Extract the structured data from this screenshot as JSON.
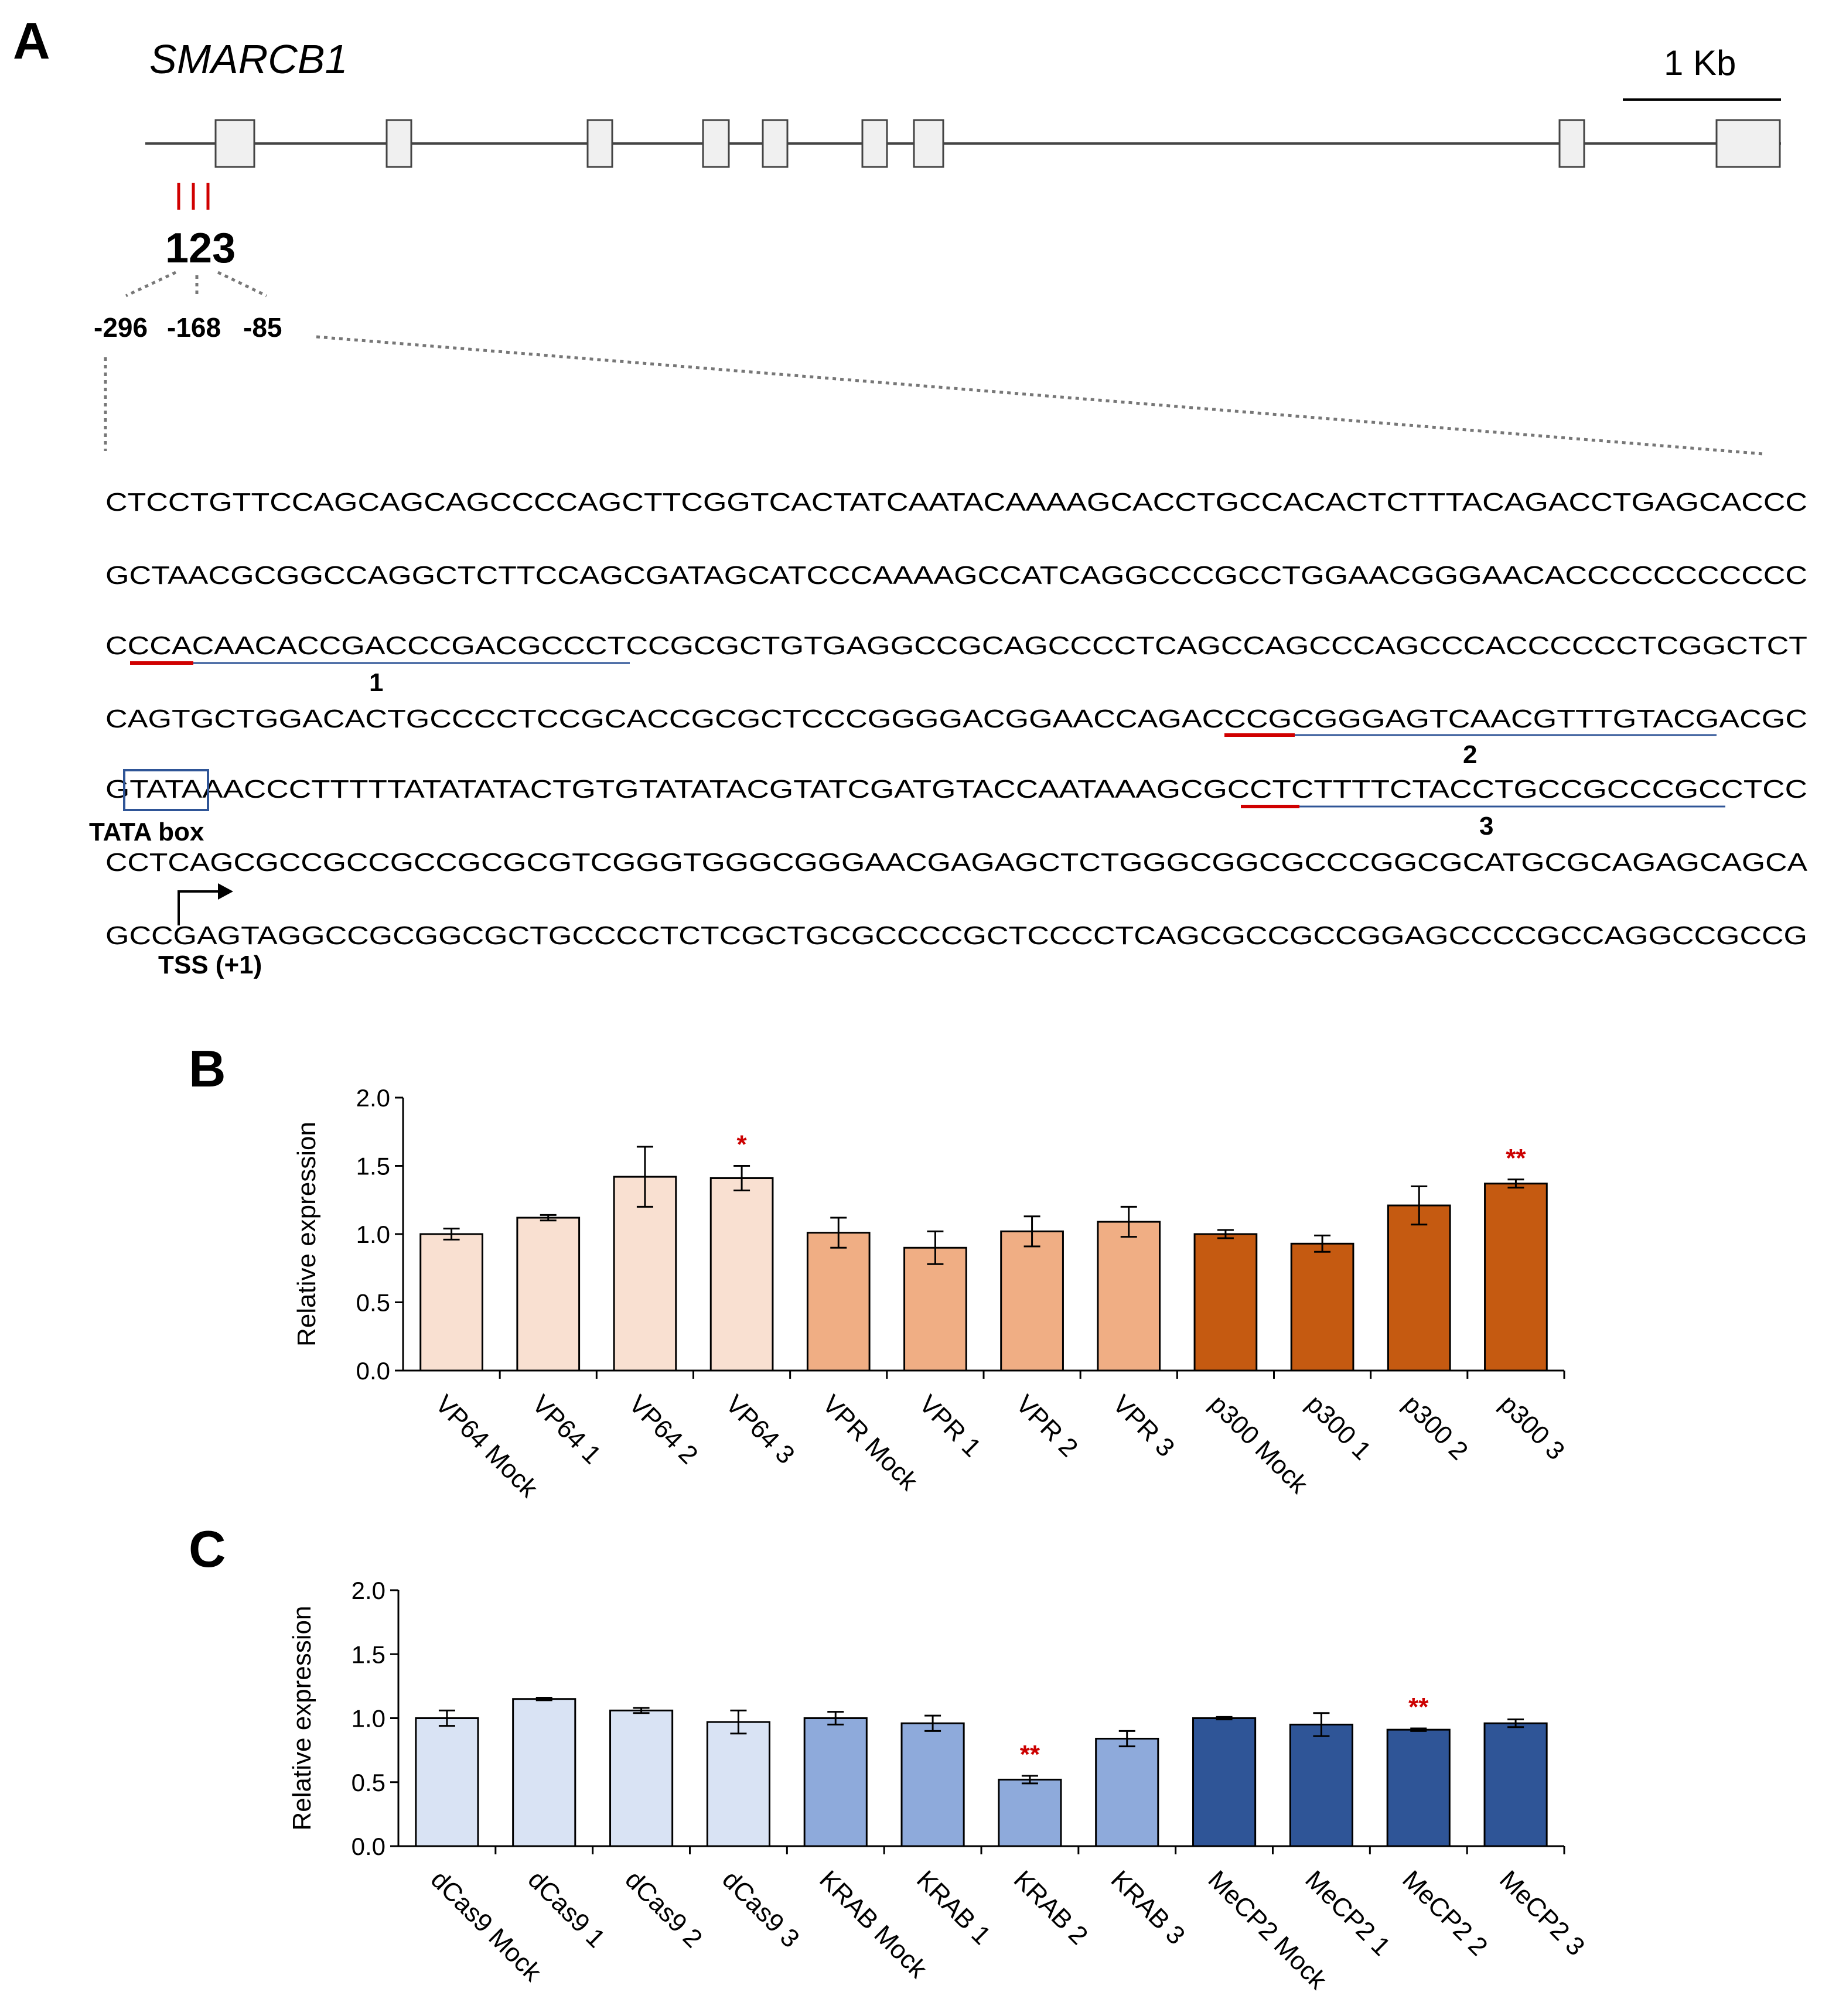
{
  "panel_labels": {
    "a": "A",
    "b": "B",
    "c": "C"
  },
  "gene_name": "SMARCB1",
  "scale_label": "1 Kb",
  "guide_marks": "123",
  "guide_positions": [
    "-296",
    "-168",
    "-85"
  ],
  "sequence_lines": [
    "CTCCTGTTCCAGCAGCAGCCCCAGCTTCGGTCACTATCAATACAAAAGCACCTGCCACACTCTTTACAGACCTGAGCACCC",
    "GCTAACGCGGCCAGGCTCTTCCAGCGATAGCATCCCAAAAGCCATCAGGCCCGCCTGGAACGGGAACACCCCCCCCCCC",
    "CCCACAACACCGACCCGACGCCCTCCGCGCTGTGAGGCCGCAGCCCCTCAGCCAGCCCAGCCCACCCCCCTCGGCTCT",
    "CAGTGCTGGACACTGCCCCTCCGCACCGCGCTCCCGGGGACGGAACCAGACCCGCGGGAGTCAACGTTTGTACGACGC",
    "GTATAAACCCTTTTTATATATACTGTGTATATACGTATCGATGTACCAATAAAGCGCCTCTTTTCTACCTGCCGCCCGCCTCC",
    "CCTCAGCGCCGCCGCCGCGCGTCGGGTGGGCGGGAACGAGAGCTCTGGGCGGCGCCCGGCGCATGCGCAGAGCAGCA",
    "GCCGAGTAGGCCGCGGCGCTGCCCCTCTCGCTGCGCCCCGCTCCCCTCAGCGCCGCCGGAGCCCCGCCAGGCCGCCG"
  ],
  "guide_labels": [
    "1",
    "2",
    "3"
  ],
  "tata_label": "TATA box",
  "tss_label": "TSS (+1)",
  "colors": {
    "vp64": "#f9e0d1",
    "vpr": "#f0ae84",
    "p300": "#c55a11",
    "dcas9": "#d9e3f4",
    "krab": "#8eaadb",
    "mecp2": "#2f5597",
    "pam": "#d00000",
    "protospacer": "#2f5597",
    "significance": "#cc0000"
  },
  "chart_data": [
    {
      "type": "bar",
      "panel": "B",
      "ylabel": "Relative expression",
      "xlabel": "",
      "ylim": [
        0,
        2.0
      ],
      "yticks": [
        "0.0",
        "0.5",
        "1.0",
        "1.5",
        "2.0"
      ],
      "grid": false,
      "categories": [
        "VP64 Mock",
        "VP64 1",
        "VP64 2",
        "VP64 3",
        "VPR Mock",
        "VPR 1",
        "VPR 2",
        "VPR 3",
        "p300 Mock",
        "p300 1",
        "p300 2",
        "p300 3"
      ],
      "values": [
        1.0,
        1.12,
        1.42,
        1.41,
        1.01,
        0.9,
        1.02,
        1.09,
        1.0,
        0.93,
        1.21,
        1.37
      ],
      "errors": [
        0.04,
        0.02,
        0.22,
        0.09,
        0.11,
        0.12,
        0.11,
        0.11,
        0.03,
        0.06,
        0.14,
        0.03
      ],
      "significance": [
        "",
        "",
        "",
        "*",
        "",
        "",
        "",
        "",
        "",
        "",
        "",
        "**"
      ],
      "groups": [
        "vp64",
        "vp64",
        "vp64",
        "vp64",
        "vpr",
        "vpr",
        "vpr",
        "vpr",
        "p300",
        "p300",
        "p300",
        "p300"
      ]
    },
    {
      "type": "bar",
      "panel": "C",
      "ylabel": "Relative expression",
      "xlabel": "",
      "ylim": [
        0,
        2.0
      ],
      "yticks": [
        "0.0",
        "0.5",
        "1.0",
        "1.5",
        "2.0"
      ],
      "grid": false,
      "categories": [
        "dCas9 Mock",
        "dCas9 1",
        "dCas9 2",
        "dCas9 3",
        "KRAB Mock",
        "KRAB 1",
        "KRAB 2",
        "KRAB 3",
        "MeCP2 Mock",
        "MeCP2 1",
        "MeCP2 2",
        "MeCP2 3"
      ],
      "values": [
        1.0,
        1.15,
        1.06,
        0.97,
        1.0,
        0.96,
        0.52,
        0.84,
        1.0,
        0.95,
        0.91,
        0.96
      ],
      "errors": [
        0.06,
        0.01,
        0.02,
        0.09,
        0.05,
        0.06,
        0.03,
        0.06,
        0.01,
        0.09,
        0.01,
        0.03
      ],
      "significance": [
        "",
        "",
        "",
        "",
        "",
        "",
        "**",
        "",
        "",
        "",
        "**",
        ""
      ],
      "groups": [
        "dcas9",
        "dcas9",
        "dcas9",
        "dcas9",
        "krab",
        "krab",
        "krab",
        "krab",
        "mecp2",
        "mecp2",
        "mecp2",
        "mecp2"
      ]
    }
  ]
}
